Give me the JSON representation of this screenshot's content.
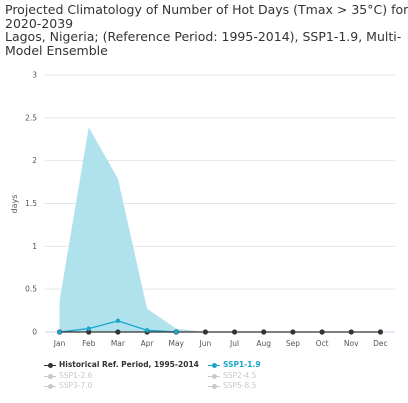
{
  "title_lines": [
    "Projected Climatology of Number of Hot Days (Tmax > 35°C) for",
    "2020-2039",
    "Lagos, Nigeria; (Reference Period: 1995-2014), SSP1-1.9, Multi-",
    "Model Ensemble"
  ],
  "chart_data": {
    "type": "line",
    "title": "Projected Climatology of Number of Hot Days (Tmax > 35°C) for 2020-2039 Lagos, Nigeria; (Reference Period: 1995-2014), SSP1-1.9, Multi-Model Ensemble",
    "xlabel": "",
    "ylabel": "days",
    "categories": [
      "Jan",
      "Feb",
      "Mar",
      "Apr",
      "May",
      "Jun",
      "Jul",
      "Aug",
      "Sep",
      "Oct",
      "Nov",
      "Dec"
    ],
    "ylim": [
      0,
      3
    ],
    "yticks": [
      "0",
      "0.5",
      "1",
      "1.5",
      "2",
      "2.5",
      "3"
    ],
    "grid": true,
    "legend_position": "bottom",
    "series": [
      {
        "name": "Historical Ref. Period, 1995-2014",
        "values": [
          0,
          0,
          0,
          0,
          0,
          0,
          0,
          0,
          0,
          0,
          0,
          0
        ],
        "color": "#333333"
      },
      {
        "name": "SSP1-1.9",
        "values": [
          0,
          0.04,
          0.13,
          0.02,
          0,
          0,
          0,
          0,
          0,
          0,
          0,
          0
        ],
        "color": "#1ba7c9"
      }
    ],
    "range_band": {
      "series": "SSP1-1.9",
      "upper": [
        0.37,
        2.39,
        1.79,
        0.27,
        0.04,
        0,
        0,
        0,
        0,
        0,
        0,
        0
      ],
      "lower": [
        0,
        0,
        0,
        0,
        0,
        0,
        0,
        0,
        0,
        0,
        0,
        0
      ],
      "color": "#b0e2ee"
    },
    "legend": [
      {
        "label": "Historical Ref. Period, 1995-2014",
        "active": true,
        "color": "#333333"
      },
      {
        "label": "SSP1-1.9",
        "active": true,
        "color": "#1ba7c9"
      },
      {
        "label": "SSP1-2.6",
        "active": false,
        "color": "#c8c8c8"
      },
      {
        "label": "SSP2-4.5",
        "active": false,
        "color": "#c8c8c8"
      },
      {
        "label": "SSP3-7.0",
        "active": false,
        "color": "#c8c8c8"
      },
      {
        "label": "SSP5-8.5",
        "active": false,
        "color": "#c8c8c8"
      }
    ]
  }
}
